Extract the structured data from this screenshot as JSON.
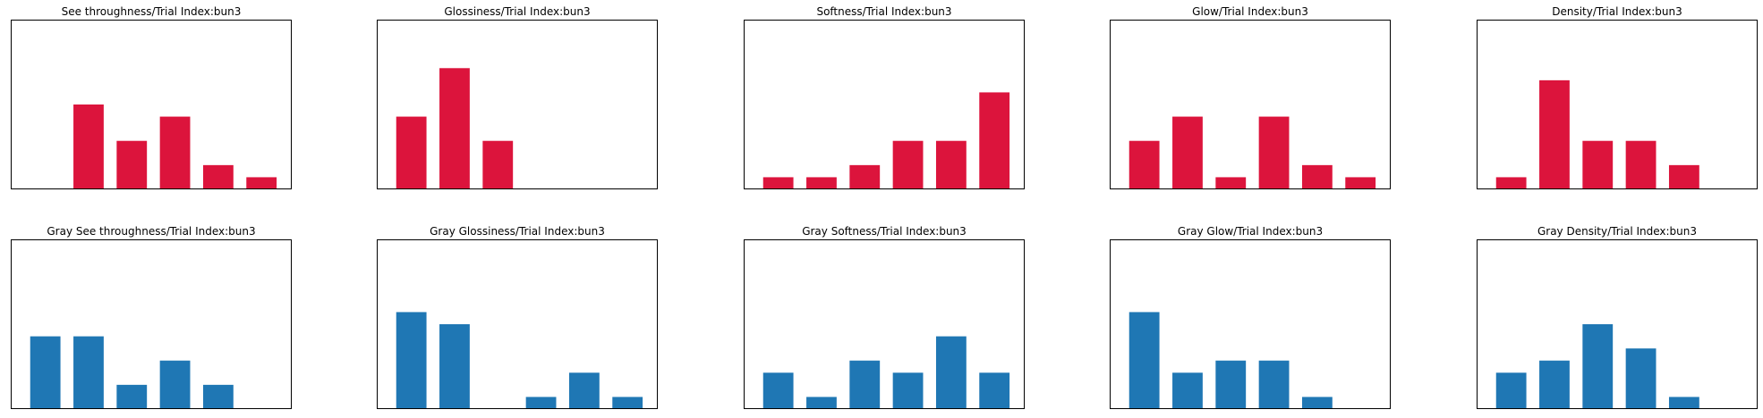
{
  "figure": {
    "colors": {
      "red": "#dc143c",
      "blue": "#1f77b4",
      "frame": "#000000",
      "background": "#ffffff"
    }
  },
  "chart_data": [
    {
      "type": "bar",
      "title": "See throughness/Trial Index:bun3",
      "color": "#dc143c",
      "x": [
        1,
        2,
        3,
        4,
        5,
        6
      ],
      "values": [
        0,
        7,
        4,
        6,
        2,
        1
      ],
      "ylim": [
        0,
        14
      ],
      "axes_ticks": false,
      "grid": false
    },
    {
      "type": "bar",
      "title": "Glossiness/Trial Index:bun3",
      "color": "#dc143c",
      "x": [
        1,
        2,
        3,
        4,
        5,
        6
      ],
      "values": [
        6,
        10,
        4,
        0,
        0,
        0
      ],
      "ylim": [
        0,
        14
      ],
      "axes_ticks": false,
      "grid": false
    },
    {
      "type": "bar",
      "title": "Softness/Trial Index:bun3",
      "color": "#dc143c",
      "x": [
        1,
        2,
        3,
        4,
        5,
        6
      ],
      "values": [
        1,
        1,
        2,
        4,
        4,
        8
      ],
      "ylim": [
        0,
        14
      ],
      "axes_ticks": false,
      "grid": false
    },
    {
      "type": "bar",
      "title": "Glow/Trial Index:bun3",
      "color": "#dc143c",
      "x": [
        1,
        2,
        3,
        4,
        5,
        6
      ],
      "values": [
        4,
        6,
        1,
        6,
        2,
        1
      ],
      "ylim": [
        0,
        14
      ],
      "axes_ticks": false,
      "grid": false
    },
    {
      "type": "bar",
      "title": "Density/Trial Index:bun3",
      "color": "#dc143c",
      "x": [
        1,
        2,
        3,
        4,
        5,
        6
      ],
      "values": [
        1,
        9,
        4,
        4,
        2,
        0
      ],
      "ylim": [
        0,
        14
      ],
      "axes_ticks": false,
      "grid": false
    },
    {
      "type": "bar",
      "title": "Gray See throughness/Trial Index:bun3",
      "color": "#1f77b4",
      "x": [
        1,
        2,
        3,
        4,
        5,
        6
      ],
      "values": [
        6,
        6,
        2,
        4,
        2,
        0
      ],
      "ylim": [
        0,
        14
      ],
      "axes_ticks": false,
      "grid": false
    },
    {
      "type": "bar",
      "title": "Gray Glossiness/Trial Index:bun3",
      "color": "#1f77b4",
      "x": [
        1,
        2,
        3,
        4,
        5,
        6
      ],
      "values": [
        8,
        7,
        0,
        1,
        3,
        1
      ],
      "ylim": [
        0,
        14
      ],
      "axes_ticks": false,
      "grid": false
    },
    {
      "type": "bar",
      "title": "Gray Softness/Trial Index:bun3",
      "color": "#1f77b4",
      "x": [
        1,
        2,
        3,
        4,
        5,
        6
      ],
      "values": [
        3,
        1,
        4,
        3,
        6,
        3
      ],
      "ylim": [
        0,
        14
      ],
      "axes_ticks": false,
      "grid": false
    },
    {
      "type": "bar",
      "title": "Gray Glow/Trial Index:bun3",
      "color": "#1f77b4",
      "x": [
        1,
        2,
        3,
        4,
        5,
        6
      ],
      "values": [
        8,
        3,
        4,
        4,
        1,
        0
      ],
      "ylim": [
        0,
        14
      ],
      "axes_ticks": false,
      "grid": false
    },
    {
      "type": "bar",
      "title": "Gray Density/Trial Index:bun3",
      "color": "#1f77b4",
      "x": [
        1,
        2,
        3,
        4,
        5,
        6
      ],
      "values": [
        3,
        4,
        7,
        5,
        1,
        0
      ],
      "ylim": [
        0,
        14
      ],
      "axes_ticks": false,
      "grid": false
    }
  ]
}
